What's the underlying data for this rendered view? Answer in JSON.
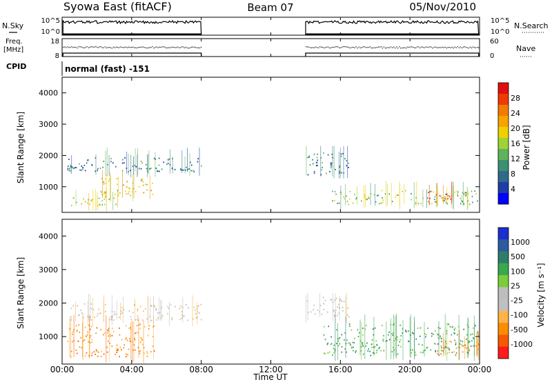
{
  "header": {
    "station": "Syowa East (fitACF)",
    "beam": "Beam 07",
    "date": "05/Nov/2010"
  },
  "top_panel": {
    "left_label": "N.Sky",
    "right_label": "N.Search",
    "left_ticks": [
      "10^5",
      "10^0"
    ],
    "right_ticks": [
      "10^5",
      "10^0"
    ]
  },
  "freq_panel": {
    "left_label_1": "Freq.",
    "left_label_2": "[MHz]",
    "right_label": "Nave",
    "left_ticks": [
      "18",
      "8"
    ],
    "right_ticks": [
      "60",
      "0"
    ]
  },
  "cpid": {
    "label": "CPID",
    "value": "normal (fast) -151"
  },
  "colors": {
    "power_scale": [
      "#0000ff",
      "#1e3da8",
      "#2f6a8a",
      "#3d8f72",
      "#5fb35a",
      "#9fd234",
      "#f0d000",
      "#f7a300",
      "#f47a00",
      "#ef3b00",
      "#e01010"
    ],
    "velocity_scale": [
      "#ff1a1a",
      "#f55a00",
      "#ff8c00",
      "#ffb347",
      "#c0c0c0",
      "#bdbdbd",
      "#7ccd3a",
      "#3aa84f",
      "#2e7d6b",
      "#2f5a9e",
      "#1a2fd0"
    ]
  },
  "chart_data": [
    {
      "type": "heatmap",
      "name": "power",
      "xlabel": "",
      "ylabel": "Slant Range [km]",
      "xlim": [
        "00:00",
        "24:00"
      ],
      "ylim": [
        180,
        4500
      ],
      "yticks": [
        "1000",
        "2000",
        "3000",
        "4000"
      ],
      "colorbar_label": "Power [dB]",
      "colorbar_ticks": [
        "4",
        "8",
        "12",
        "16",
        "20",
        "24",
        "28"
      ],
      "colorbar_range": [
        0,
        32
      ],
      "data_gaps_ut": [
        [
          8,
          14
        ]
      ],
      "echo_regions": [
        {
          "ut_start": 0.3,
          "ut_end": 3.2,
          "range_km": [
            400,
            700
          ],
          "value_db": 18
        },
        {
          "ut_start": 2.2,
          "ut_end": 5.2,
          "range_km": [
            700,
            1300
          ],
          "value_db": 20
        },
        {
          "ut_start": 0.3,
          "ut_end": 8.0,
          "range_km": [
            1500,
            1950
          ],
          "value_db": 8
        },
        {
          "ut_start": 14.0,
          "ut_end": 16.5,
          "range_km": [
            1400,
            2100
          ],
          "value_db": 8
        },
        {
          "ut_start": 15.5,
          "ut_end": 24.0,
          "range_km": [
            450,
            900
          ],
          "value_db": 14
        },
        {
          "ut_start": 21.0,
          "ut_end": 22.5,
          "range_km": [
            550,
            900
          ],
          "value_db": 26
        }
      ]
    },
    {
      "type": "heatmap",
      "name": "velocity",
      "xlabel": "Time UT",
      "ylabel": "Slant Range [km]",
      "xlim": [
        "00:00",
        "24:00"
      ],
      "ylim": [
        180,
        4500
      ],
      "xticks": [
        "00:00",
        "04:00",
        "08:00",
        "12:00",
        "16:00",
        "20:00",
        "00:00"
      ],
      "yticks": [
        "1000",
        "2000",
        "3000",
        "4000"
      ],
      "colorbar_label": "Velocity [m s⁻¹]",
      "colorbar_ticks": [
        "1000",
        "500",
        "100",
        "25",
        "-25",
        "-100",
        "-500",
        "-1000"
      ],
      "data_gaps_ut": [
        [
          8,
          14
        ]
      ],
      "echo_regions": [
        {
          "ut_start": 0.3,
          "ut_end": 5.3,
          "range_km": [
            400,
            1400
          ],
          "value_ms": -300
        },
        {
          "ut_start": 0.3,
          "ut_end": 8.0,
          "range_km": [
            1500,
            2000
          ],
          "value_ms": 0
        },
        {
          "ut_start": 14.0,
          "ut_end": 16.5,
          "range_km": [
            1600,
            2200
          ],
          "value_ms": 0
        },
        {
          "ut_start": 15.0,
          "ut_end": 24.0,
          "range_km": [
            450,
            1400
          ],
          "value_ms": 150
        },
        {
          "ut_start": 21.5,
          "ut_end": 24.0,
          "range_km": [
            500,
            900
          ],
          "value_ms": -300
        }
      ]
    }
  ]
}
